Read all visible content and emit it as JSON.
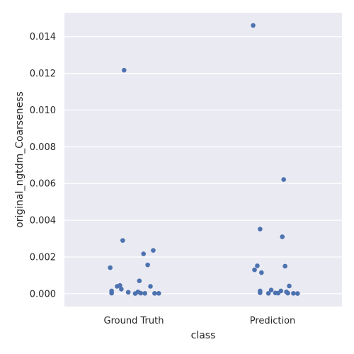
{
  "chart_data": {
    "type": "scatter",
    "style": "seaborn-darkgrid strip plot",
    "xlabel": "class",
    "ylabel": "original_ngtdm_Coarseness",
    "categories": [
      "Ground Truth",
      "Prediction"
    ],
    "ylim": [
      -0.0007,
      0.0153
    ],
    "yticks": [
      0.0,
      0.002,
      0.004,
      0.006,
      0.008,
      0.01,
      0.012,
      0.014
    ],
    "ytick_labels": [
      "0.000",
      "0.002",
      "0.004",
      "0.006",
      "0.008",
      "0.010",
      "0.012",
      "0.014"
    ],
    "grid": true,
    "legend": "none",
    "colors": {
      "background": "#eaeaf2",
      "grid": "#ffffff",
      "point": "#4c72b0",
      "text": "#262626"
    },
    "series": [
      {
        "category": "Ground Truth",
        "points": [
          {
            "jitter": -0.07,
            "y": 0.01217
          },
          {
            "jitter": -0.08,
            "y": 0.0029
          },
          {
            "jitter": 0.14,
            "y": 0.00236
          },
          {
            "jitter": 0.07,
            "y": 0.00217
          },
          {
            "jitter": 0.1,
            "y": 0.00157
          },
          {
            "jitter": -0.17,
            "y": 0.00142
          },
          {
            "jitter": 0.04,
            "y": 0.0007
          },
          {
            "jitter": -0.1,
            "y": 0.00045
          },
          {
            "jitter": -0.12,
            "y": 0.0004
          },
          {
            "jitter": 0.12,
            "y": 0.0004
          },
          {
            "jitter": -0.09,
            "y": 0.00025
          },
          {
            "jitter": -0.16,
            "y": 0.00015
          },
          {
            "jitter": 0.03,
            "y": 0.0001
          },
          {
            "jitter": -0.04,
            "y": 8e-05
          },
          {
            "jitter": -0.16,
            "y": 3e-05
          },
          {
            "jitter": 0.05,
            "y": 3e-05
          },
          {
            "jitter": 0.08,
            "y": 2e-05
          },
          {
            "jitter": 0.15,
            "y": 2e-05
          },
          {
            "jitter": 0.18,
            "y": 2e-05
          },
          {
            "jitter": 0.01,
            "y": 1e-05
          }
        ]
      },
      {
        "category": "Prediction",
        "points": [
          {
            "jitter": -0.14,
            "y": 0.01461
          },
          {
            "jitter": 0.08,
            "y": 0.00622
          },
          {
            "jitter": -0.09,
            "y": 0.00352
          },
          {
            "jitter": 0.07,
            "y": 0.0031
          },
          {
            "jitter": -0.11,
            "y": 0.00152
          },
          {
            "jitter": 0.09,
            "y": 0.0015
          },
          {
            "jitter": -0.13,
            "y": 0.0013
          },
          {
            "jitter": -0.08,
            "y": 0.00115
          },
          {
            "jitter": 0.12,
            "y": 0.00042
          },
          {
            "jitter": -0.01,
            "y": 0.0002
          },
          {
            "jitter": -0.09,
            "y": 0.00015
          },
          {
            "jitter": 0.06,
            "y": 0.00015
          },
          {
            "jitter": 0.1,
            "y": 0.0001
          },
          {
            "jitter": -0.09,
            "y": 5e-05
          },
          {
            "jitter": 0.02,
            "y": 4e-05
          },
          {
            "jitter": 0.04,
            "y": 3e-05
          },
          {
            "jitter": 0.11,
            "y": 3e-05
          },
          {
            "jitter": -0.03,
            "y": 2e-05
          },
          {
            "jitter": 0.15,
            "y": 2e-05
          },
          {
            "jitter": 0.18,
            "y": 1e-05
          }
        ]
      }
    ]
  }
}
